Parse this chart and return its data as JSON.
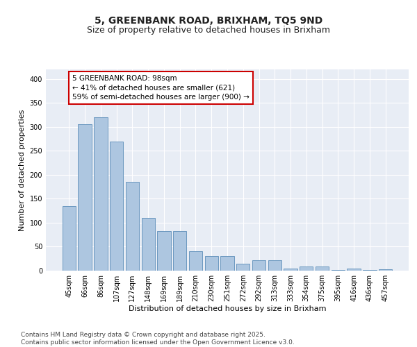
{
  "title": "5, GREENBANK ROAD, BRIXHAM, TQ5 9ND",
  "subtitle": "Size of property relative to detached houses in Brixham",
  "xlabel": "Distribution of detached houses by size in Brixham",
  "ylabel": "Number of detached properties",
  "categories": [
    "45sqm",
    "66sqm",
    "86sqm",
    "107sqm",
    "127sqm",
    "148sqm",
    "169sqm",
    "189sqm",
    "210sqm",
    "230sqm",
    "251sqm",
    "272sqm",
    "292sqm",
    "313sqm",
    "333sqm",
    "354sqm",
    "375sqm",
    "395sqm",
    "416sqm",
    "436sqm",
    "457sqm"
  ],
  "values": [
    135,
    305,
    320,
    270,
    185,
    110,
    83,
    83,
    40,
    30,
    30,
    15,
    22,
    22,
    5,
    9,
    9,
    2,
    5,
    1,
    3
  ],
  "bar_color": "#adc6e0",
  "bar_edge_color": "#5b8db8",
  "annotation_text": "5 GREENBANK ROAD: 98sqm\n← 41% of detached houses are smaller (621)\n59% of semi-detached houses are larger (900) →",
  "annotation_box_color": "#ffffff",
  "annotation_box_edge": "#cc0000",
  "ylim": [
    0,
    420
  ],
  "yticks": [
    0,
    50,
    100,
    150,
    200,
    250,
    300,
    350,
    400
  ],
  "background_color": "#e8edf5",
  "grid_color": "#ffffff",
  "footer": "Contains HM Land Registry data © Crown copyright and database right 2025.\nContains public sector information licensed under the Open Government Licence v3.0.",
  "title_fontsize": 10,
  "subtitle_fontsize": 9,
  "xlabel_fontsize": 8,
  "ylabel_fontsize": 8,
  "tick_fontsize": 7,
  "annotation_fontsize": 7.5,
  "footer_fontsize": 6.5
}
